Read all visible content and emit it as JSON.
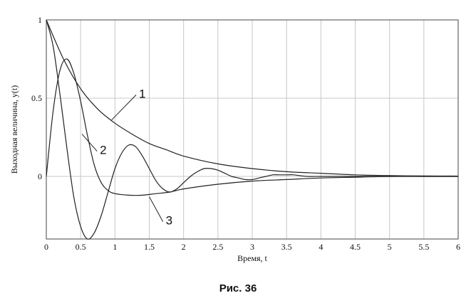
{
  "caption": "Рис. 36",
  "chart_data": {
    "type": "line",
    "title": "",
    "xlabel": "Время, t",
    "ylabel": "Выходная величина, y(t)",
    "xlim": [
      0,
      6
    ],
    "ylim": [
      -0.4,
      1
    ],
    "grid": true,
    "x_ticks": [
      0,
      0.5,
      1,
      1.5,
      2,
      2.5,
      3,
      3.5,
      4,
      4.5,
      5,
      5.5,
      6
    ],
    "x_tick_labels": [
      "0",
      "0.5",
      "1",
      "1.5",
      "2",
      "2.5",
      "3",
      "3.5",
      "4",
      "4.5",
      "5",
      "5.5",
      "6"
    ],
    "y_ticks": [
      0,
      0.5,
      1
    ],
    "y_tick_labels": [
      "0",
      "0.5",
      "1"
    ],
    "series": [
      {
        "label": "1",
        "x": [
          0,
          0.25,
          0.5,
          0.75,
          1,
          1.25,
          1.5,
          1.75,
          2,
          2.5,
          3,
          3.5,
          4,
          4.5,
          5,
          5.5,
          6
        ],
        "y": [
          1,
          0.75,
          0.56,
          0.43,
          0.34,
          0.27,
          0.21,
          0.17,
          0.13,
          0.08,
          0.05,
          0.03,
          0.02,
          0.01,
          0.005,
          0.003,
          0.002
        ]
      },
      {
        "label": "2",
        "x": [
          0,
          0.1,
          0.2,
          0.3,
          0.4,
          0.5,
          0.6,
          0.7,
          0.8,
          0.9,
          1,
          1.1,
          1.2,
          1.3,
          1.4,
          1.5,
          1.6,
          1.7,
          1.8,
          1.9,
          2,
          2.1,
          2.2,
          2.3,
          2.4,
          2.5,
          2.6,
          2.7,
          2.8,
          2.9,
          3,
          3.1,
          3.2,
          3.3,
          3.4,
          3.5,
          3.6,
          3.8,
          4,
          4.2,
          4.4,
          4.6,
          5,
          5.5,
          6
        ],
        "y": [
          1,
          0.83,
          0.52,
          0.18,
          -0.13,
          -0.32,
          -0.4,
          -0.36,
          -0.25,
          -0.1,
          0.05,
          0.15,
          0.2,
          0.19,
          0.13,
          0.05,
          -0.03,
          -0.08,
          -0.1,
          -0.08,
          -0.04,
          0.0,
          0.03,
          0.05,
          0.05,
          0.04,
          0.02,
          0.0,
          -0.01,
          -0.02,
          -0.02,
          -0.01,
          0.0,
          0.01,
          0.01,
          0.01,
          0.01,
          0.0,
          0.0,
          0.0,
          0.0,
          0.0,
          0.0,
          0.0,
          0.0
        ]
      },
      {
        "label": "3",
        "x": [
          0,
          0.1,
          0.2,
          0.3,
          0.4,
          0.5,
          0.6,
          0.7,
          0.8,
          0.9,
          1,
          1.2,
          1.4,
          1.6,
          1.8,
          2,
          2.5,
          3,
          3.5,
          4,
          4.5,
          5,
          5.5,
          6
        ],
        "y": [
          0,
          0.42,
          0.68,
          0.75,
          0.66,
          0.48,
          0.26,
          0.07,
          -0.04,
          -0.09,
          -0.11,
          -0.12,
          -0.12,
          -0.11,
          -0.1,
          -0.08,
          -0.05,
          -0.03,
          -0.02,
          -0.01,
          -0.005,
          0.0,
          0.0,
          0.0
        ]
      }
    ]
  }
}
